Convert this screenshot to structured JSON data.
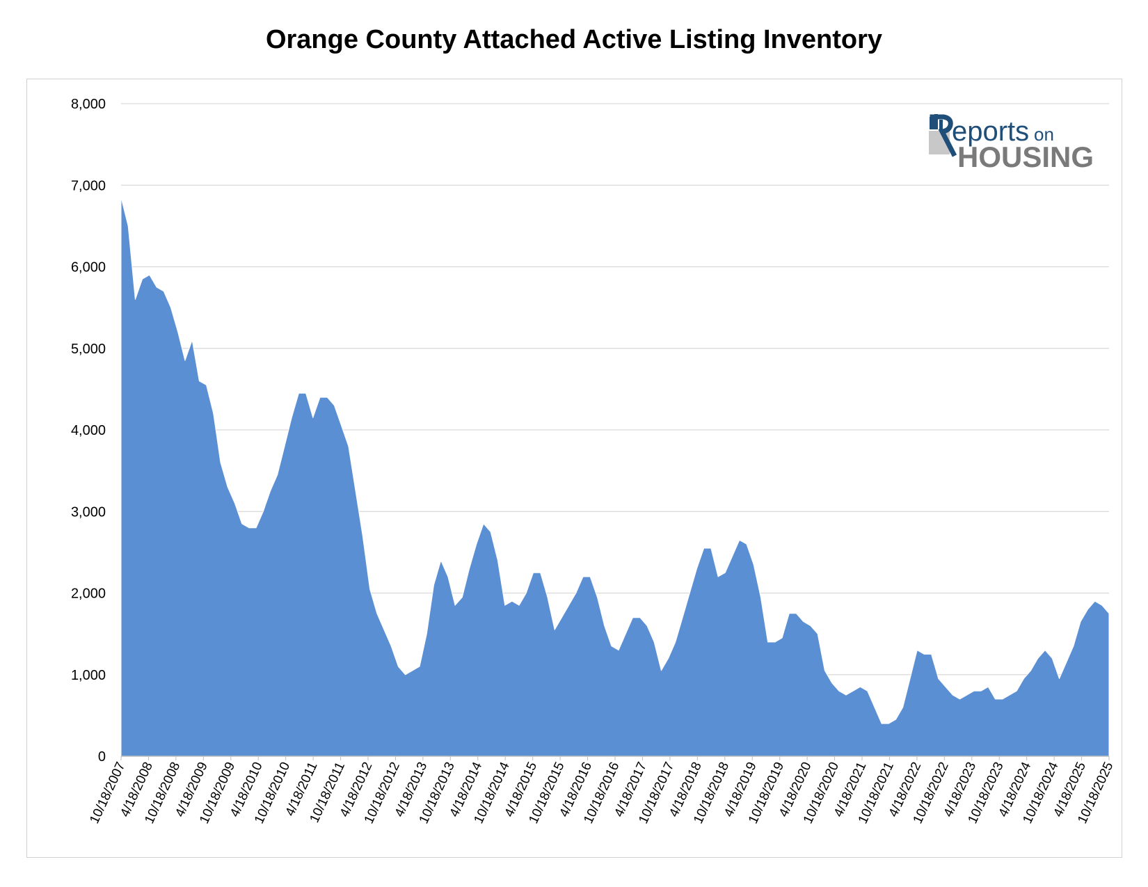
{
  "chart_data": {
    "type": "area",
    "title": "Orange County Attached Active Listing Inventory",
    "xlabel": "",
    "ylabel": "",
    "ylim": [
      0,
      8000
    ],
    "y_ticks": [
      "0",
      "1,000",
      "2,000",
      "3,000",
      "4,000",
      "5,000",
      "6,000",
      "7,000",
      "8,000"
    ],
    "x_tick_labels": [
      "10/18/2007",
      "4/18/2008",
      "10/18/2008",
      "4/18/2009",
      "10/18/2009",
      "4/18/2010",
      "10/18/2010",
      "4/18/2011",
      "10/18/2011",
      "4/18/2012",
      "10/18/2012",
      "4/18/2013",
      "10/18/2013",
      "4/18/2014",
      "10/18/2014",
      "4/18/2015",
      "10/18/2015",
      "4/18/2016",
      "10/18/2016",
      "4/18/2017",
      "10/18/2017",
      "4/18/2018",
      "10/18/2018",
      "4/18/2019",
      "10/18/2019",
      "4/18/2020",
      "10/18/2020",
      "4/18/2021",
      "10/18/2021",
      "4/18/2022",
      "10/18/2022",
      "4/18/2023",
      "10/18/2023",
      "4/18/2024",
      "10/18/2024",
      "4/18/2025",
      "10/18/2025"
    ],
    "grid": true,
    "area_color": "#5b8fd4",
    "series": [
      {
        "values": [
          6850,
          6500,
          5600,
          5850,
          5900,
          5750,
          5700,
          5500,
          5200,
          4850,
          5100,
          4600,
          4550,
          4200,
          3600,
          3300,
          3100,
          2850,
          2800,
          2800,
          3000,
          3250,
          3450,
          3800,
          4150,
          4450,
          4450,
          4150,
          4400,
          4400,
          4300,
          4050,
          3800,
          3250,
          2700,
          2050,
          1750,
          1550,
          1350,
          1100,
          1000,
          1050,
          1100,
          1500,
          2100,
          2400,
          2200,
          1850,
          1950,
          2300,
          2600,
          2850,
          2750,
          2400,
          1850,
          1900,
          1850,
          2000,
          2250,
          2250,
          1950,
          1550,
          1700,
          1850,
          2000,
          2200,
          2200,
          1950,
          1600,
          1350,
          1300,
          1500,
          1700,
          1700,
          1600,
          1400,
          1050,
          1200,
          1400,
          1700,
          2000,
          2300,
          2550,
          2550,
          2200,
          2250,
          2450,
          2650,
          2600,
          2350,
          1950,
          1400,
          1400,
          1450,
          1750,
          1750,
          1650,
          1600,
          1500,
          1050,
          900,
          800,
          750,
          800,
          850,
          800,
          600,
          400,
          400,
          450,
          600,
          950,
          1300,
          1250,
          1250,
          950,
          850,
          750,
          700,
          750,
          800,
          800,
          850,
          700,
          700,
          750,
          800,
          950,
          1050,
          1200,
          1300,
          1200,
          950,
          1150,
          1350,
          1650,
          1800,
          1900,
          1850,
          1750
        ]
      }
    ]
  },
  "logo": {
    "line1": "eports",
    "line1_small": "on",
    "line2": "HOUSING"
  }
}
